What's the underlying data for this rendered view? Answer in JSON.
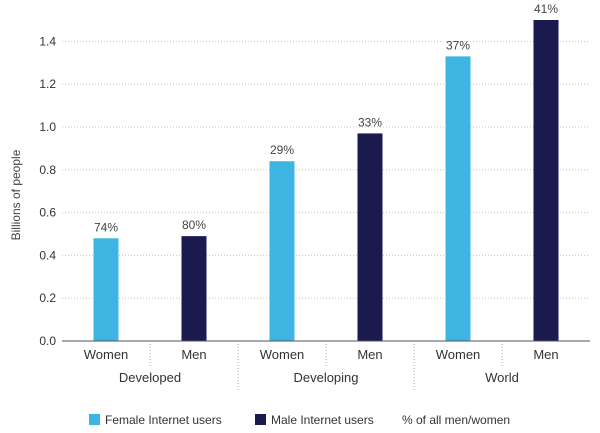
{
  "chart_data": {
    "type": "bar",
    "ylabel": "Billions of people",
    "ylim": [
      0,
      1.5
    ],
    "yticks": [
      "0.0",
      "0.2",
      "0.4",
      "0.6",
      "0.8",
      "1.0",
      "1.2",
      "1.4"
    ],
    "grid": "horizontal-dotted",
    "groups": [
      {
        "name": "Developed",
        "bars": [
          {
            "category": "Women",
            "series": "female",
            "value": 0.48,
            "label": "74%"
          },
          {
            "category": "Men",
            "series": "male",
            "value": 0.49,
            "label": "80%"
          }
        ]
      },
      {
        "name": "Developing",
        "bars": [
          {
            "category": "Women",
            "series": "female",
            "value": 0.84,
            "label": "29%"
          },
          {
            "category": "Men",
            "series": "male",
            "value": 0.97,
            "label": "33%"
          }
        ]
      },
      {
        "name": "World",
        "bars": [
          {
            "category": "Women",
            "series": "female",
            "value": 1.33,
            "label": "37%"
          },
          {
            "category": "Men",
            "series": "male",
            "value": 1.5,
            "label": "41%"
          }
        ]
      }
    ],
    "legend": {
      "position": "bottom-left",
      "items": [
        {
          "series": "female",
          "label": "Female Internet users"
        },
        {
          "series": "male",
          "label": "Male Internet users"
        }
      ],
      "note": "% of all men/women"
    },
    "colors": {
      "female": "#3db5e3",
      "male": "#1b1a4f",
      "grid": "#c4c4c4",
      "axis": "#555555"
    }
  }
}
